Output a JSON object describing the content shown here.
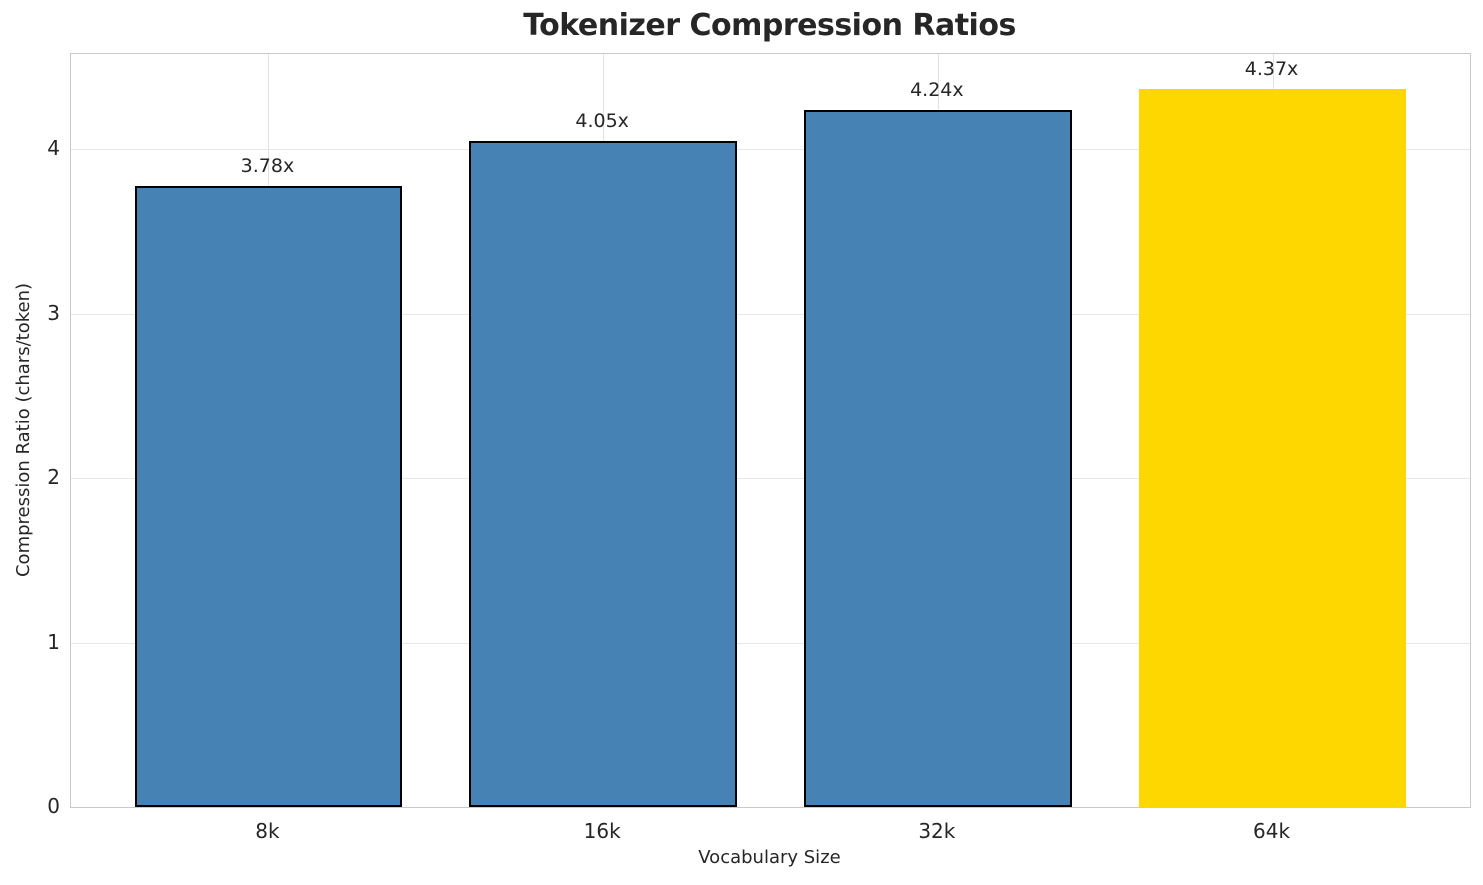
{
  "chart_data": {
    "type": "bar",
    "title": "Tokenizer Compression Ratios",
    "xlabel": "Vocabulary Size",
    "ylabel": "Compression Ratio (chars/token)",
    "categories": [
      "8k",
      "16k",
      "32k",
      "64k"
    ],
    "values": [
      3.78,
      4.05,
      4.24,
      4.37
    ],
    "bar_labels": [
      "3.78x",
      "4.05x",
      "4.24x",
      "4.37x"
    ],
    "bar_colors": [
      "#4682b4",
      "#4682b4",
      "#4682b4",
      "#ffd700"
    ],
    "bar_edge_colors": [
      "#000000",
      "#000000",
      "#000000",
      "none"
    ],
    "highlight_index": 3,
    "ylim": [
      0,
      4.58
    ],
    "yticks": [
      "0",
      "1",
      "2",
      "3",
      "4"
    ],
    "grid": true,
    "legend": "none",
    "colors": {
      "bar_default": "#4682b4",
      "bar_highlight": "#ffd700",
      "bar_edge": "#000000",
      "text": "#262626",
      "grid": "#e5e5e5",
      "spine": "#c9c9c9",
      "background": "#ffffff"
    }
  }
}
